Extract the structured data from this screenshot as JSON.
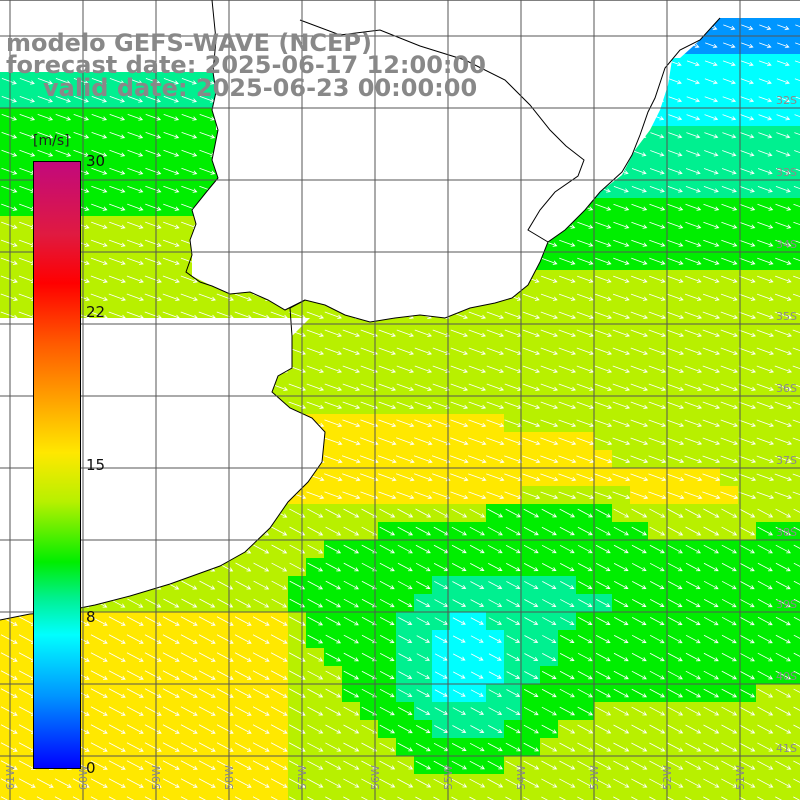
{
  "title": {
    "line1": "modelo GEFS-WAVE (NCEP)",
    "line2": "forecast date: 2025-06-17 12:00:00",
    "line3": "valid date: 2025-06-23 00:00:00"
  },
  "colorbar": {
    "unit": "[m/s]",
    "min": 0,
    "max": 30,
    "ticks": [
      "30",
      "22",
      "15",
      "8",
      "0"
    ]
  },
  "grid": {
    "lat_labels": [
      "32S",
      "33S",
      "34S",
      "35S",
      "36S",
      "37S",
      "38S",
      "39S",
      "40S",
      "41S"
    ],
    "lon_labels": [
      "61W",
      "60W",
      "59W",
      "58W",
      "57W",
      "56W",
      "55W",
      "54W",
      "53W",
      "52W",
      "51W"
    ]
  },
  "field": {
    "variable": "wind speed and direction",
    "palette": [
      "#0000ff",
      "#0096ff",
      "#00ffff",
      "#00f090",
      "#00ee00",
      "#b8f000",
      "#ffe800",
      "#ffa800",
      "#ff5a00",
      "#ff0000",
      "#e01a40",
      "#c2097c"
    ]
  }
}
